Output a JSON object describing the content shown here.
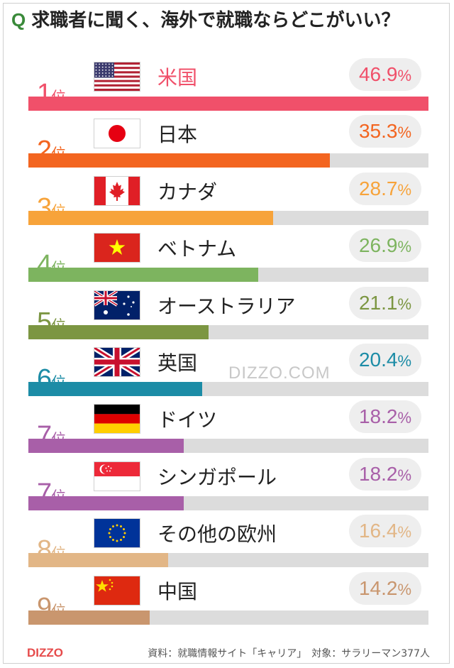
{
  "title": {
    "q": "Q",
    "text": "求職者に聞く、海外で就職ならどこがいい？"
  },
  "chart_data": {
    "type": "bar",
    "title": "求職者に聞く、海外で就職ならどこがいい？",
    "xlim": [
      0,
      46.9
    ],
    "rank_suffix": "位",
    "percent_sign": "%",
    "items": [
      {
        "rank": "1",
        "country": "米国",
        "value": "46.9",
        "color": "#f0506a",
        "flag": "usa-flag-icon"
      },
      {
        "rank": "2",
        "country": "日本",
        "value": "35.3",
        "color": "#f36520",
        "flag": "japan-flag-icon"
      },
      {
        "rank": "3",
        "country": "カナダ",
        "value": "28.7",
        "color": "#f7a33a",
        "flag": "canada-flag-icon"
      },
      {
        "rank": "4",
        "country": "ベトナム",
        "value": "26.9",
        "color": "#7db45f",
        "flag": "vietnam-flag-icon"
      },
      {
        "rank": "5",
        "country": "オーストラリア",
        "value": "21.1",
        "color": "#7c9642",
        "flag": "australia-flag-icon"
      },
      {
        "rank": "6",
        "country": "英国",
        "value": "20.4",
        "color": "#1c8ca6",
        "flag": "uk-flag-icon"
      },
      {
        "rank": "7",
        "country": "ドイツ",
        "value": "18.2",
        "color": "#a85fa8",
        "flag": "germany-flag-icon"
      },
      {
        "rank": "7",
        "country": "シンガポール",
        "value": "18.2",
        "color": "#a85fa8",
        "flag": "singapore-flag-icon"
      },
      {
        "rank": "8",
        "country": "その他の欧州",
        "value": "16.4",
        "color": "#e2b686",
        "flag": "eu-flag-icon"
      },
      {
        "rank": "9",
        "country": "中国",
        "value": "14.2",
        "color": "#c9966e",
        "flag": "china-flag-icon"
      }
    ]
  },
  "watermark": "DIZZO.COM",
  "footer": {
    "logo": "DIZZO",
    "source": "資料：就職情報サイト「キャリア」　対象：サラリーマン377人"
  }
}
